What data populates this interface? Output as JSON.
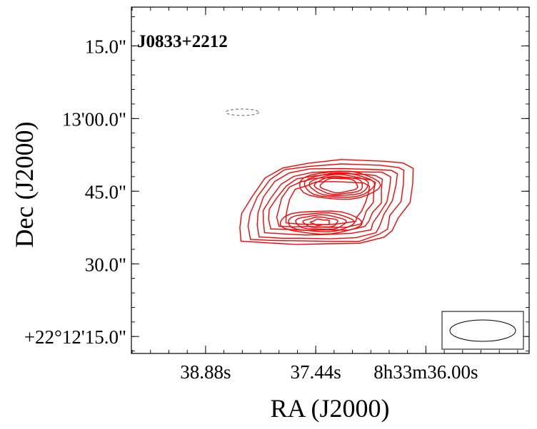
{
  "chart_data": {
    "type": "contour",
    "source_name": "J0833+2212",
    "xlabel": "RA (J2000)",
    "ylabel": "Dec (J2000)",
    "x_tick_labels": [
      "38.88s",
      "37.44s",
      "8h33m36.00s"
    ],
    "x_ticks_sec": [
      38.88,
      37.44,
      36.0
    ],
    "y_tick_labels": [
      "15.0\"",
      "13'00.0\"",
      "45.0\"",
      "30.0\"",
      "+22°12'15.0\""
    ],
    "y_ticks_arcsec": [
      15,
      0,
      -15,
      -30,
      -45
    ],
    "ra_range_sec": [
      39.85,
      34.65
    ],
    "dec_range_arcsec": [
      23,
      -48.5
    ],
    "colors": {
      "positive": "#ff0000",
      "negative": "#808080",
      "frame": "#000000"
    },
    "components": [
      {
        "name": "north-lobe",
        "ra_sec": 37.1,
        "dec_arcsec": -13.5
      },
      {
        "name": "south-lobe",
        "ra_sec": 37.3,
        "dec_arcsec": -21.3
      }
    ],
    "positive_levels": 12,
    "negative_contour": {
      "ra_sec": 38.4,
      "dec_arcsec": 1.3,
      "style": "dashed"
    },
    "beam": {
      "shape": "ellipse",
      "position": "bottom-right"
    }
  }
}
